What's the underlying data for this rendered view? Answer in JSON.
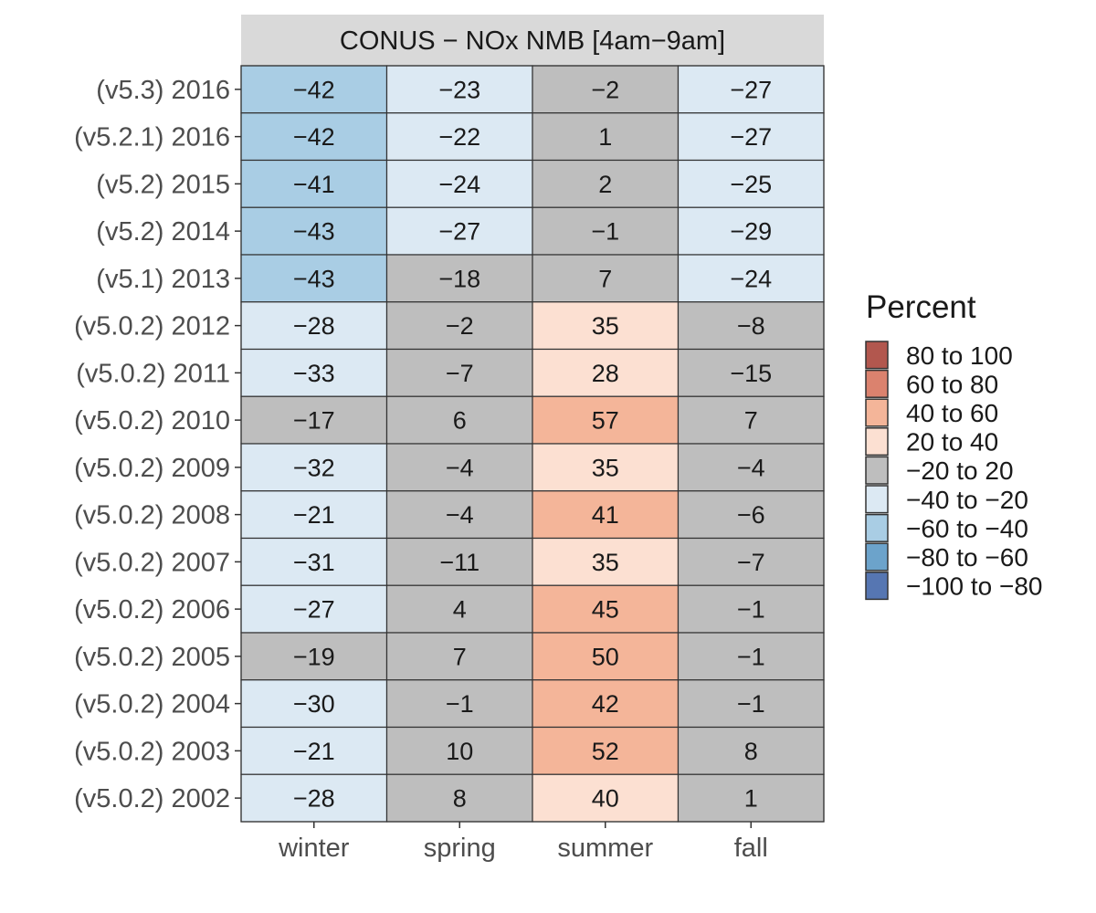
{
  "chart_data": {
    "type": "heatmap",
    "title": "CONUS − NOx NMB [4am−9am]",
    "x_categories": [
      "winter",
      "spring",
      "summer",
      "fall"
    ],
    "y_categories": [
      "(v5.3) 2016",
      "(v5.2.1) 2016",
      "(v5.2) 2015",
      "(v5.2) 2014",
      "(v5.1) 2013",
      "(v5.0.2) 2012",
      "(v5.0.2) 2011",
      "(v5.0.2) 2010",
      "(v5.0.2) 2009",
      "(v5.0.2) 2008",
      "(v5.0.2) 2007",
      "(v5.0.2) 2006",
      "(v5.0.2) 2005",
      "(v5.0.2) 2004",
      "(v5.0.2) 2003",
      "(v5.0.2) 2002"
    ],
    "values": [
      [
        -42,
        -23,
        -2,
        -27
      ],
      [
        -42,
        -22,
        1,
        -27
      ],
      [
        -41,
        -24,
        2,
        -25
      ],
      [
        -43,
        -27,
        -1,
        -29
      ],
      [
        -43,
        -18,
        7,
        -24
      ],
      [
        -28,
        -2,
        35,
        -8
      ],
      [
        -33,
        -7,
        28,
        -15
      ],
      [
        -17,
        6,
        57,
        7
      ],
      [
        -32,
        -4,
        35,
        -4
      ],
      [
        -21,
        -4,
        41,
        -6
      ],
      [
        -31,
        -11,
        35,
        -7
      ],
      [
        -27,
        4,
        45,
        -1
      ],
      [
        -19,
        7,
        50,
        -1
      ],
      [
        -30,
        -1,
        42,
        -1
      ],
      [
        -21,
        10,
        52,
        8
      ],
      [
        -28,
        8,
        40,
        1
      ]
    ],
    "legend": {
      "title": "Percent",
      "position": "right",
      "bins": [
        {
          "label": "80 to 100",
          "min": 80,
          "max": 100,
          "color": "#B2574E"
        },
        {
          "label": "60 to 80",
          "min": 60,
          "max": 80,
          "color": "#DB826E"
        },
        {
          "label": "40 to 60",
          "min": 40,
          "max": 60,
          "color": "#F4B599"
        },
        {
          "label": "20 to 40",
          "min": 20,
          "max": 40,
          "color": "#FCE0D2"
        },
        {
          "label": "−20 to 20",
          "min": -20,
          "max": 20,
          "color": "#BEBEBE"
        },
        {
          "label": "−40 to −20",
          "min": -40,
          "max": -20,
          "color": "#DCE9F3"
        },
        {
          "label": "−60 to −40",
          "min": -60,
          "max": -40,
          "color": "#A9CDE4"
        },
        {
          "label": "−80 to −60",
          "min": -80,
          "max": -60,
          "color": "#6CA3CB"
        },
        {
          "label": "−100 to −80",
          "min": -100,
          "max": -80,
          "color": "#5676B2"
        }
      ]
    },
    "strip_color": "#D9D9D9",
    "grid": false
  }
}
